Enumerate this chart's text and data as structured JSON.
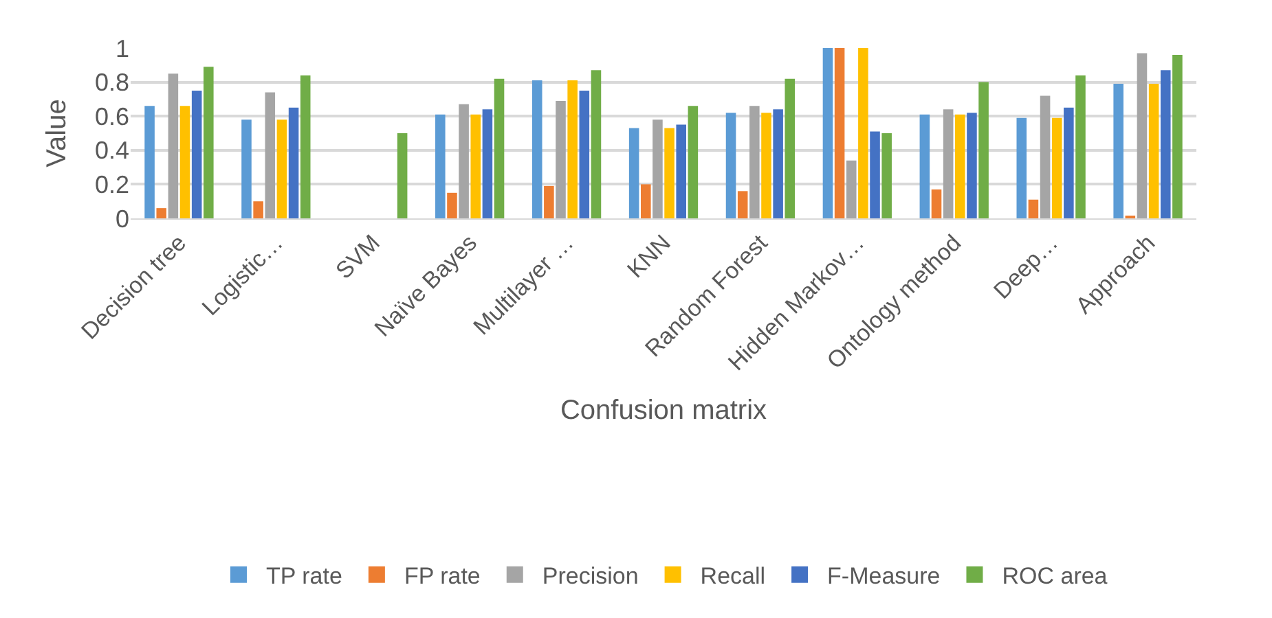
{
  "chart_data": {
    "type": "bar",
    "xlabel": "Confusion matrix",
    "ylabel": "Value",
    "categories": [
      "Decision tree",
      "Logistic…",
      "SVM",
      "Naïve Bayes",
      "Multilayer …",
      "KNN",
      "Random Forest",
      "Hidden Markov…",
      "Ontology method",
      "Deep…",
      "Approach"
    ],
    "series": [
      {
        "name": "TP rate",
        "color": "#5b9bd5",
        "values": [
          0.66,
          0.58,
          0,
          0.61,
          0.81,
          0.53,
          0.62,
          1,
          0.61,
          0.59,
          0.79
        ]
      },
      {
        "name": "FP rate",
        "color": "#ed7d31",
        "values": [
          0.06,
          0.1,
          0,
          0.15,
          0.19,
          0.2,
          0.16,
          1,
          0.17,
          0.11,
          0.01
        ]
      },
      {
        "name": "Precision",
        "color": "#a5a5a5",
        "values": [
          0.85,
          0.74,
          0,
          0.67,
          0.69,
          0.58,
          0.66,
          0.34,
          0.64,
          0.72,
          0.97
        ]
      },
      {
        "name": "Recall",
        "color": "#ffc000",
        "values": [
          0.66,
          0.58,
          0,
          0.61,
          0.81,
          0.53,
          0.62,
          1,
          0.61,
          0.59,
          0.79
        ]
      },
      {
        "name": "F-Measure",
        "color": "#4472c4",
        "values": [
          0.75,
          0.65,
          0,
          0.64,
          0.75,
          0.55,
          0.64,
          0.51,
          0.62,
          0.65,
          0.87
        ]
      },
      {
        "name": "ROC area",
        "color": "#70ad47",
        "values": [
          0.89,
          0.84,
          0.5,
          0.82,
          0.87,
          0.66,
          0.82,
          0.5,
          0.8,
          0.84,
          0.96
        ]
      }
    ],
    "ylim": [
      0,
      1
    ],
    "yticks": [
      0,
      0.2,
      0.4,
      0.6,
      0.8,
      1
    ],
    "grid": "y",
    "legend": "bottom"
  }
}
